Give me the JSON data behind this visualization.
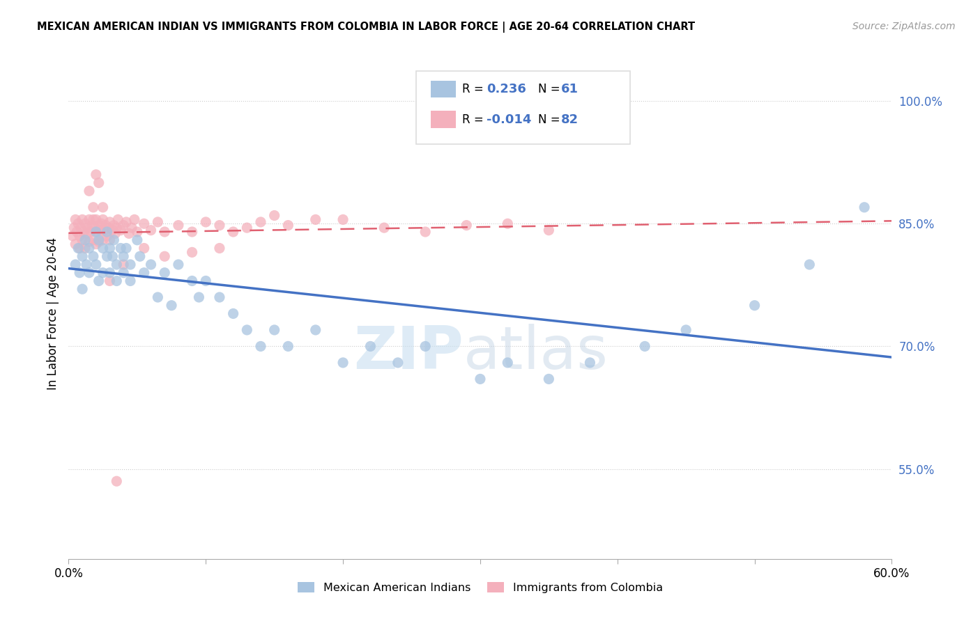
{
  "title": "MEXICAN AMERICAN INDIAN VS IMMIGRANTS FROM COLOMBIA IN LABOR FORCE | AGE 20-64 CORRELATION CHART",
  "source": "Source: ZipAtlas.com",
  "ylabel": "In Labor Force | Age 20-64",
  "xlim": [
    0.0,
    0.6
  ],
  "ylim": [
    0.44,
    1.04
  ],
  "x_ticks": [
    0.0,
    0.1,
    0.2,
    0.3,
    0.4,
    0.5,
    0.6
  ],
  "x_tick_labels": [
    "0.0%",
    "",
    "",
    "",
    "",
    "",
    "60.0%"
  ],
  "y_ticks": [
    0.55,
    0.7,
    0.85,
    1.0
  ],
  "y_tick_labels": [
    "55.0%",
    "70.0%",
    "85.0%",
    "100.0%"
  ],
  "legend_label1": "Mexican American Indians",
  "legend_label2": "Immigrants from Colombia",
  "color_blue": "#a8c4e0",
  "color_pink": "#f4b0bc",
  "trendline_blue": "#4472c4",
  "trendline_pink": "#e06070",
  "watermark_zip": "ZIP",
  "watermark_atlas": "atlas",
  "blue_scatter_x": [
    0.005,
    0.007,
    0.008,
    0.01,
    0.01,
    0.012,
    0.013,
    0.015,
    0.015,
    0.018,
    0.02,
    0.02,
    0.022,
    0.022,
    0.025,
    0.025,
    0.028,
    0.028,
    0.03,
    0.03,
    0.032,
    0.033,
    0.035,
    0.035,
    0.038,
    0.04,
    0.04,
    0.042,
    0.045,
    0.045,
    0.05,
    0.052,
    0.055,
    0.06,
    0.065,
    0.07,
    0.075,
    0.08,
    0.09,
    0.095,
    0.1,
    0.11,
    0.12,
    0.13,
    0.14,
    0.15,
    0.16,
    0.18,
    0.2,
    0.22,
    0.24,
    0.26,
    0.3,
    0.32,
    0.35,
    0.38,
    0.42,
    0.45,
    0.5,
    0.54,
    0.58
  ],
  "blue_scatter_y": [
    0.8,
    0.82,
    0.79,
    0.81,
    0.77,
    0.83,
    0.8,
    0.82,
    0.79,
    0.81,
    0.84,
    0.8,
    0.83,
    0.78,
    0.82,
    0.79,
    0.84,
    0.81,
    0.82,
    0.79,
    0.81,
    0.83,
    0.8,
    0.78,
    0.82,
    0.81,
    0.79,
    0.82,
    0.8,
    0.78,
    0.83,
    0.81,
    0.79,
    0.8,
    0.76,
    0.79,
    0.75,
    0.8,
    0.78,
    0.76,
    0.78,
    0.76,
    0.74,
    0.72,
    0.7,
    0.72,
    0.7,
    0.72,
    0.68,
    0.7,
    0.68,
    0.7,
    0.66,
    0.68,
    0.66,
    0.68,
    0.7,
    0.72,
    0.75,
    0.8,
    0.87
  ],
  "pink_scatter_x": [
    0.003,
    0.004,
    0.005,
    0.005,
    0.006,
    0.007,
    0.008,
    0.008,
    0.009,
    0.01,
    0.01,
    0.011,
    0.012,
    0.012,
    0.013,
    0.014,
    0.015,
    0.015,
    0.016,
    0.017,
    0.018,
    0.018,
    0.019,
    0.02,
    0.02,
    0.021,
    0.022,
    0.022,
    0.023,
    0.024,
    0.025,
    0.025,
    0.026,
    0.027,
    0.028,
    0.029,
    0.03,
    0.03,
    0.032,
    0.033,
    0.034,
    0.035,
    0.036,
    0.038,
    0.04,
    0.042,
    0.044,
    0.046,
    0.048,
    0.05,
    0.055,
    0.06,
    0.065,
    0.07,
    0.08,
    0.09,
    0.1,
    0.11,
    0.12,
    0.14,
    0.16,
    0.18,
    0.2,
    0.23,
    0.26,
    0.29,
    0.32,
    0.35,
    0.04,
    0.055,
    0.07,
    0.09,
    0.11,
    0.13,
    0.15,
    0.03,
    0.025,
    0.02,
    0.015,
    0.018,
    0.022,
    0.035
  ],
  "pink_scatter_y": [
    0.835,
    0.845,
    0.855,
    0.825,
    0.84,
    0.85,
    0.835,
    0.82,
    0.845,
    0.855,
    0.83,
    0.84,
    0.85,
    0.82,
    0.838,
    0.845,
    0.855,
    0.828,
    0.84,
    0.848,
    0.855,
    0.83,
    0.845,
    0.855,
    0.825,
    0.84,
    0.848,
    0.828,
    0.842,
    0.85,
    0.855,
    0.83,
    0.842,
    0.848,
    0.835,
    0.845,
    0.852,
    0.83,
    0.842,
    0.848,
    0.838,
    0.845,
    0.855,
    0.842,
    0.848,
    0.852,
    0.838,
    0.845,
    0.855,
    0.84,
    0.85,
    0.842,
    0.852,
    0.84,
    0.848,
    0.84,
    0.852,
    0.848,
    0.84,
    0.852,
    0.848,
    0.855,
    0.855,
    0.845,
    0.84,
    0.848,
    0.85,
    0.842,
    0.8,
    0.82,
    0.81,
    0.815,
    0.82,
    0.845,
    0.86,
    0.78,
    0.87,
    0.91,
    0.89,
    0.87,
    0.9,
    0.535
  ]
}
